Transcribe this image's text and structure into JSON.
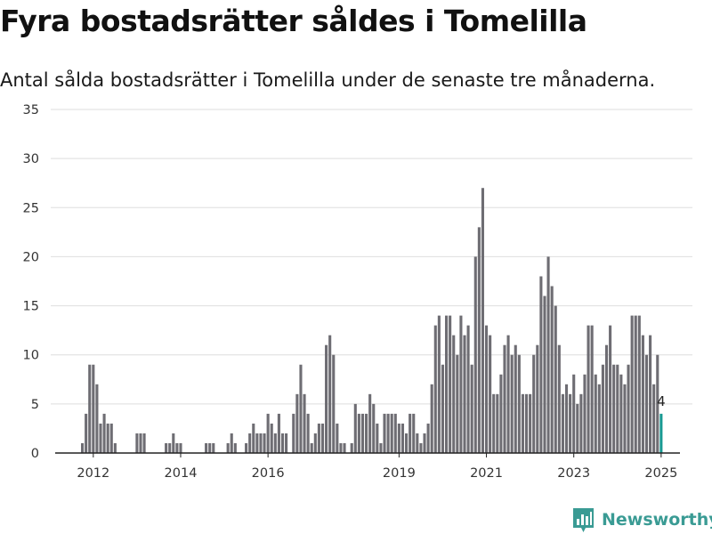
{
  "title": "Fyra bostadsrätter såldes i Tomelilla",
  "subtitle": "Antal sålda bostadsrätter i Tomelilla under de senaste tre månaderna.",
  "brand": {
    "name": "Newsworthy",
    "icon": "newsworthy-chart-icon",
    "color": "#3a9b94"
  },
  "chart_data": {
    "type": "bar",
    "title": "",
    "xlabel": "",
    "ylabel": "",
    "ylim": [
      0,
      35
    ],
    "yticks": [
      "0",
      "5",
      "10",
      "15",
      "20",
      "25",
      "30",
      "35"
    ],
    "xticks": [
      "2012",
      "2014",
      "2016",
      "2019",
      "2021",
      "2023",
      "2025"
    ],
    "grid": true,
    "legend": "none",
    "bar_color": "#6e6d73",
    "highlight_color": "#1a9a93",
    "first_period": "2011-10",
    "period": "month",
    "values": [
      1,
      4,
      9,
      9,
      7,
      3,
      4,
      3,
      3,
      1,
      0,
      0,
      0,
      0,
      0,
      2,
      2,
      2,
      0,
      0,
      0,
      0,
      0,
      1,
      1,
      2,
      1,
      1,
      0,
      0,
      0,
      0,
      0,
      0,
      1,
      1,
      1,
      0,
      0,
      0,
      1,
      2,
      1,
      0,
      0,
      1,
      2,
      3,
      2,
      2,
      2,
      4,
      3,
      2,
      4,
      2,
      2,
      0,
      4,
      6,
      9,
      6,
      4,
      1,
      2,
      3,
      3,
      11,
      12,
      10,
      3,
      1,
      1,
      0,
      1,
      5,
      4,
      4,
      4,
      6,
      5,
      3,
      1,
      4,
      4,
      4,
      4,
      3,
      3,
      2,
      4,
      4,
      2,
      1,
      2,
      3,
      7,
      13,
      14,
      9,
      14,
      14,
      12,
      10,
      14,
      12,
      13,
      9,
      20,
      23,
      27,
      13,
      12,
      6,
      6,
      8,
      11,
      12,
      10,
      11,
      10,
      6,
      6,
      6,
      10,
      11,
      18,
      16,
      20,
      17,
      15,
      11,
      6,
      7,
      6,
      8,
      5,
      6,
      8,
      13,
      13,
      8,
      7,
      9,
      11,
      13,
      9,
      9,
      8,
      7,
      9,
      14,
      14,
      14,
      12,
      10,
      12,
      7,
      10,
      4
    ],
    "last_value_label": "4"
  }
}
